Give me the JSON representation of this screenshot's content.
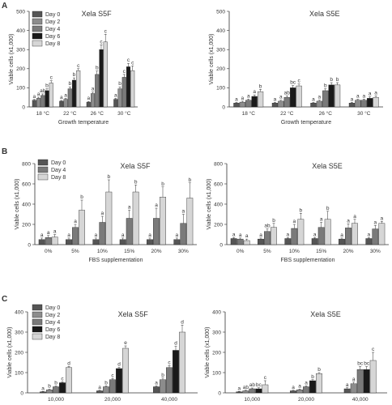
{
  "colors": {
    "Day 0": "#555555",
    "Day 2": "#8c8c8c",
    "Day 4": "#7a7a7a",
    "Day 6": "#1a1a1a",
    "Day 8": "#d6d6d6"
  },
  "panel_letters": [
    "A",
    "B",
    "C"
  ],
  "chart_data": [
    {
      "id": "A1",
      "type": "bar",
      "panel": "A",
      "title": "Xela S5F",
      "xlabel": "Growth temperature",
      "ylabel": "Viable cells (x1,000)",
      "ylim": [
        0,
        500
      ],
      "yticks": [
        0,
        100,
        200,
        300,
        400,
        500
      ],
      "categories": [
        "18 °C",
        "22 °C",
        "26 °C",
        "30 °C"
      ],
      "legend": [
        "Day 0",
        "Day 2",
        "Day 4",
        "Day 6",
        "Day 8"
      ],
      "series": [
        {
          "name": "Day 0",
          "values": [
            35,
            30,
            25,
            40
          ],
          "errors": [
            4,
            4,
            4,
            5
          ],
          "labels": [
            "a",
            "a",
            "a",
            "a"
          ]
        },
        {
          "name": "Day 2",
          "values": [
            45,
            40,
            70,
            95
          ],
          "errors": [
            6,
            5,
            8,
            10
          ],
          "labels": [
            "a",
            "a",
            "a",
            "b"
          ]
        },
        {
          "name": "Day 4",
          "values": [
            60,
            95,
            170,
            155
          ],
          "errors": [
            8,
            10,
            18,
            15
          ],
          "labels": [
            "ab",
            "b",
            "b",
            "c"
          ]
        },
        {
          "name": "Day 6",
          "values": [
            85,
            140,
            300,
            210
          ],
          "errors": [
            10,
            12,
            25,
            18
          ],
          "labels": [
            "b",
            "b",
            "c",
            "c"
          ]
        },
        {
          "name": "Day 8",
          "values": [
            125,
            190,
            340,
            190
          ],
          "errors": [
            12,
            10,
            40,
            25
          ],
          "labels": [
            "c",
            "c",
            "c",
            "c"
          ]
        }
      ]
    },
    {
      "id": "A2",
      "type": "bar",
      "panel": "A",
      "title": "Xela S5E",
      "xlabel": "Growth temperature",
      "ylabel": "Viable cells (x1,000)",
      "ylim": [
        0,
        500
      ],
      "yticks": [
        0,
        100,
        200,
        300,
        400,
        500
      ],
      "categories": [
        "18 °C",
        "22 °C",
        "26 °C",
        "30 °C"
      ],
      "series": [
        {
          "name": "Day 0",
          "values": [
            20,
            20,
            20,
            20
          ],
          "errors": [
            4,
            4,
            4,
            4
          ],
          "labels": [
            "a",
            "a",
            "a",
            "a"
          ]
        },
        {
          "name": "Day 2",
          "values": [
            25,
            30,
            30,
            35
          ],
          "errors": [
            5,
            5,
            5,
            5
          ],
          "labels": [
            "a",
            "a",
            "a",
            "a"
          ]
        },
        {
          "name": "Day 4",
          "values": [
            35,
            50,
            85,
            35
          ],
          "errors": [
            6,
            8,
            10,
            6
          ],
          "labels": [
            "a",
            "ab",
            "b",
            "a"
          ]
        },
        {
          "name": "Day 6",
          "values": [
            55,
            100,
            115,
            45
          ],
          "errors": [
            8,
            12,
            12,
            8
          ],
          "labels": [
            "a",
            "bc",
            "b",
            "a"
          ]
        },
        {
          "name": "Day 8",
          "values": [
            80,
            110,
            115,
            50
          ],
          "errors": [
            12,
            10,
            12,
            8
          ],
          "labels": [
            "b",
            "c",
            "b",
            "a"
          ]
        }
      ]
    },
    {
      "id": "B1",
      "type": "bar",
      "panel": "B",
      "title": "Xela S5F",
      "xlabel": "FBS supplementation",
      "ylabel": "Viable cells (x1,000)",
      "ylim": [
        0,
        800
      ],
      "yticks": [
        0,
        200,
        400,
        600,
        800
      ],
      "categories": [
        "0%",
        "5%",
        "10%",
        "15%",
        "20%",
        "30%"
      ],
      "legend": [
        "Day 0",
        "Day 4",
        "Day 8"
      ],
      "series": [
        {
          "name": "Day 0",
          "values": [
            50,
            50,
            50,
            50,
            50,
            50
          ],
          "errors": [
            15,
            15,
            15,
            15,
            15,
            15
          ],
          "labels": [
            "a",
            "a",
            "a",
            "a",
            "a",
            "a"
          ]
        },
        {
          "name": "Day 4",
          "values": [
            70,
            170,
            220,
            260,
            260,
            210
          ],
          "errors": [
            20,
            30,
            60,
            80,
            100,
            90
          ],
          "labels": [
            "a",
            "a",
            "a",
            "a",
            "a",
            "a"
          ]
        },
        {
          "name": "Day 8",
          "values": [
            75,
            340,
            520,
            520,
            470,
            460
          ],
          "errors": [
            25,
            100,
            120,
            70,
            100,
            150
          ],
          "labels": [
            "a",
            "b",
            "b",
            "b",
            "b",
            "b"
          ]
        }
      ]
    },
    {
      "id": "B2",
      "type": "bar",
      "panel": "B",
      "title": "Xela S5E",
      "xlabel": "FBS supplementation",
      "ylabel": "Viable cells (x1,000)",
      "ylim": [
        0,
        800
      ],
      "yticks": [
        0,
        200,
        400,
        600,
        800
      ],
      "categories": [
        "0%",
        "5%",
        "10%",
        "15%",
        "20%",
        "30%"
      ],
      "series": [
        {
          "name": "Day 0",
          "values": [
            60,
            55,
            60,
            60,
            55,
            60
          ],
          "errors": [
            10,
            10,
            10,
            10,
            10,
            10
          ],
          "labels": [
            "a",
            "a",
            "a",
            "a",
            "a",
            "a"
          ]
        },
        {
          "name": "Day 4",
          "values": [
            55,
            130,
            160,
            170,
            165,
            155
          ],
          "errors": [
            10,
            25,
            40,
            50,
            40,
            35
          ],
          "labels": [
            "a",
            "ab",
            "a",
            "a",
            "a",
            "a"
          ]
        },
        {
          "name": "Day 8",
          "values": [
            40,
            170,
            250,
            250,
            210,
            210
          ],
          "errors": [
            15,
            40,
            60,
            80,
            40,
            20
          ],
          "labels": [
            "a",
            "b",
            "b",
            "b",
            "a",
            "a"
          ]
        }
      ]
    },
    {
      "id": "C1",
      "type": "bar",
      "panel": "C",
      "title": "Xela S5F",
      "xlabel": "",
      "ylabel": "Viable cells (x1,000)",
      "ylim": [
        0,
        400
      ],
      "yticks": [
        0,
        100,
        200,
        300,
        400
      ],
      "categories": [
        "10,000",
        "20,000",
        "40,000"
      ],
      "legend": [
        "Day 0",
        "Day 2",
        "Day 4",
        "Day 6",
        "Day 8"
      ],
      "series": [
        {
          "name": "Day 0",
          "values": [
            5,
            10,
            30
          ],
          "errors": [
            2,
            3,
            5
          ],
          "labels": [
            "a",
            "a",
            "a"
          ]
        },
        {
          "name": "Day 2",
          "values": [
            15,
            30,
            65
          ],
          "errors": [
            3,
            5,
            8
          ],
          "labels": [
            "b",
            "b",
            "b"
          ]
        },
        {
          "name": "Day 4",
          "values": [
            30,
            65,
            125
          ],
          "errors": [
            4,
            6,
            10
          ],
          "labels": [
            "b",
            "c",
            "c"
          ]
        },
        {
          "name": "Day 6",
          "values": [
            50,
            120,
            210
          ],
          "errors": [
            5,
            6,
            20
          ],
          "labels": [
            "c",
            "d",
            "d"
          ]
        },
        {
          "name": "Day 8",
          "values": [
            125,
            220,
            300
          ],
          "errors": [
            6,
            12,
            35
          ],
          "labels": [
            "d",
            "e",
            "d"
          ]
        }
      ]
    },
    {
      "id": "C2",
      "type": "bar",
      "panel": "C",
      "title": "Xela S5E",
      "xlabel": "",
      "ylabel": "Viable cells (x1,000)",
      "ylim": [
        0,
        400
      ],
      "yticks": [
        0,
        100,
        200,
        300,
        400
      ],
      "categories": [
        "10,000",
        "20,000",
        "40,000"
      ],
      "series": [
        {
          "name": "Day 0",
          "values": [
            5,
            10,
            20
          ],
          "errors": [
            2,
            3,
            5
          ],
          "labels": [
            "a",
            "a",
            "a"
          ]
        },
        {
          "name": "Day 2",
          "values": [
            10,
            15,
            45
          ],
          "errors": [
            3,
            4,
            8
          ],
          "labels": [
            "ab",
            "a",
            "a"
          ]
        },
        {
          "name": "Day 4",
          "values": [
            20,
            30,
            115
          ],
          "errors": [
            4,
            5,
            15
          ],
          "labels": [
            "ab",
            "a",
            "bc"
          ]
        },
        {
          "name": "Day 6",
          "values": [
            20,
            60,
            115
          ],
          "errors": [
            5,
            5,
            15
          ],
          "labels": [
            "bc",
            "b",
            "bc"
          ]
        },
        {
          "name": "Day 8",
          "values": [
            40,
            95,
            160
          ],
          "errors": [
            20,
            5,
            40
          ],
          "labels": [
            "c",
            "b",
            "c"
          ]
        }
      ]
    }
  ]
}
